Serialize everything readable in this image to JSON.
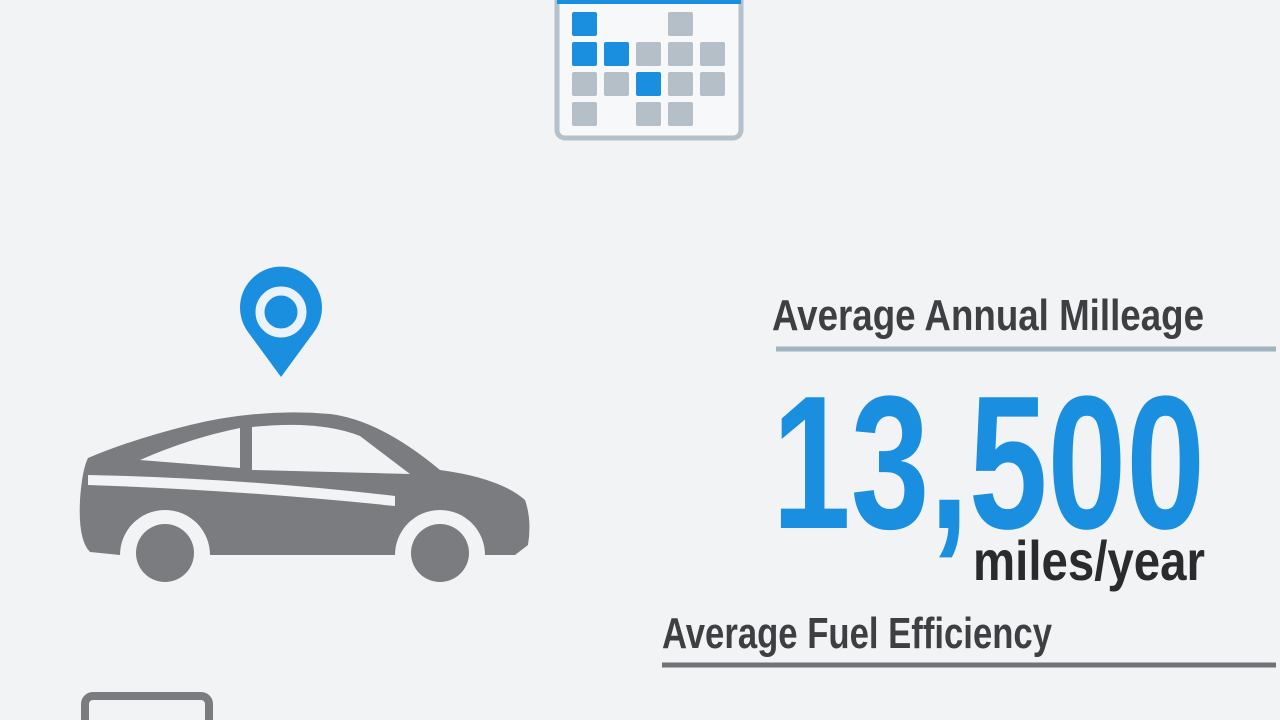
{
  "stats": [
    {
      "label": "Average Annual Milleage",
      "value": "13,500",
      "unit": "miles/year"
    },
    {
      "label": "Average Fuel Efficiency"
    }
  ]
}
